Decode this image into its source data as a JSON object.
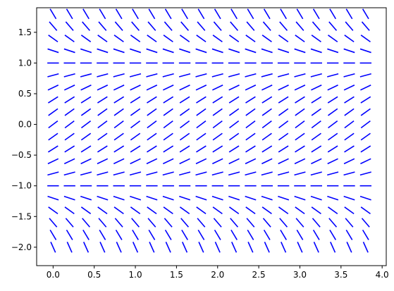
{
  "chart_data": {
    "type": "slope_field",
    "title": "",
    "xlabel": "",
    "ylabel": "",
    "xlim": [
      -0.2,
      4.05
    ],
    "ylim": [
      -2.3,
      1.9
    ],
    "grid": false,
    "legend": "none",
    "equation": "dy/dx = 1 - y^2",
    "x_ticks": [
      0.0,
      0.5,
      1.0,
      1.5,
      2.0,
      2.5,
      3.0,
      3.5,
      4.0
    ],
    "x_tick_labels": [
      "0.0",
      "0.5",
      "1.0",
      "1.5",
      "2.0",
      "2.5",
      "3.0",
      "3.5",
      "4.0"
    ],
    "y_ticks": [
      1.5,
      1.0,
      0.5,
      0.0,
      -0.5,
      -1.0,
      -1.5,
      -2.0
    ],
    "y_tick_labels": [
      "1.5",
      "1.0",
      "0.5",
      "0.0",
      "−0.5",
      "−1.0",
      "−1.5",
      "−2.0"
    ],
    "x_samples": [
      0.0,
      0.2,
      0.4,
      0.6,
      0.8,
      1.0,
      1.2,
      1.4,
      1.6,
      1.8,
      2.0,
      2.2,
      2.4,
      2.6,
      2.8,
      3.0,
      3.2,
      3.4,
      3.6,
      3.8
    ],
    "y_samples": [
      -2.0,
      -1.8,
      -1.6,
      -1.4,
      -1.2,
      -1.0,
      -0.8,
      -0.6,
      -0.4,
      -0.2,
      0.0,
      0.2,
      0.4,
      0.6,
      0.8,
      1.0,
      1.2,
      1.4,
      1.6,
      1.8
    ],
    "segment_color": "#0000ff"
  }
}
